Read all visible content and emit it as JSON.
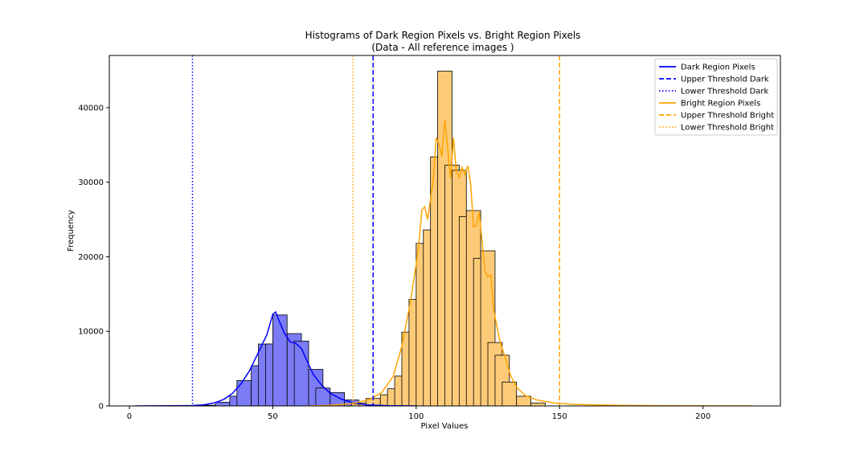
{
  "chart_data": {
    "type": "bar",
    "title": "Histograms of Dark Region Pixels vs. Bright Region Pixels",
    "subtitle": "(Data - All reference images )",
    "xlabel": "Pixel Values",
    "ylabel": "Frequency",
    "xlim": [
      -7,
      227
    ],
    "ylim": [
      0,
      47000
    ],
    "x_ticks": [
      0,
      50,
      100,
      150,
      200
    ],
    "y_ticks": [
      0,
      10000,
      20000,
      30000,
      40000
    ],
    "grid": false,
    "legend_position": "top-right",
    "bin_width": 5,
    "series": [
      {
        "name": "Dark Region Pixels",
        "color": "#0000ff",
        "bar_fill": "#7b7bf5",
        "bins": [
          {
            "x": 25,
            "v": 100
          },
          {
            "x": 30,
            "v": 500
          },
          {
            "x": 35,
            "v": 1300
          },
          {
            "x": 37.5,
            "v": 3400
          },
          {
            "x": 42.5,
            "v": 5400
          },
          {
            "x": 45,
            "v": 8300
          },
          {
            "x": 47.5,
            "v": 8300
          },
          {
            "x": 50,
            "v": 12200
          },
          {
            "x": 55,
            "v": 9700
          },
          {
            "x": 57.5,
            "v": 8700
          },
          {
            "x": 62.5,
            "v": 4900
          },
          {
            "x": 65,
            "v": 2400
          },
          {
            "x": 70,
            "v": 1800
          },
          {
            "x": 75,
            "v": 800
          },
          {
            "x": 80,
            "v": 300
          }
        ],
        "kde": [
          [
            2,
            0
          ],
          [
            15,
            20
          ],
          [
            22,
            60
          ],
          [
            26,
            150
          ],
          [
            30,
            450
          ],
          [
            33,
            900
          ],
          [
            36,
            1700
          ],
          [
            39,
            3000
          ],
          [
            42,
            4800
          ],
          [
            45,
            7200
          ],
          [
            48,
            9600
          ],
          [
            50,
            12300
          ],
          [
            51,
            12600
          ],
          [
            52,
            11600
          ],
          [
            54,
            9800
          ],
          [
            56,
            8600
          ],
          [
            58,
            8400
          ],
          [
            60,
            7700
          ],
          [
            62,
            6000
          ],
          [
            64,
            4300
          ],
          [
            67,
            2800
          ],
          [
            70,
            1700
          ],
          [
            74,
            900
          ],
          [
            78,
            400
          ],
          [
            83,
            130
          ],
          [
            90,
            40
          ],
          [
            100,
            0
          ]
        ]
      },
      {
        "name": "Bright Region Pixels",
        "color": "#ffa500",
        "bar_fill": "#fdcb78",
        "bins": [
          {
            "x": 77.5,
            "v": 300
          },
          {
            "x": 80,
            "v": 400
          },
          {
            "x": 82.5,
            "v": 1000
          },
          {
            "x": 87.5,
            "v": 1500
          },
          {
            "x": 90,
            "v": 2300
          },
          {
            "x": 92.5,
            "v": 4000
          },
          {
            "x": 95,
            "v": 9900
          },
          {
            "x": 97.5,
            "v": 14300
          },
          {
            "x": 100,
            "v": 21800
          },
          {
            "x": 102.5,
            "v": 23600
          },
          {
            "x": 105,
            "v": 33400
          },
          {
            "x": 107.5,
            "v": 44900
          },
          {
            "x": 110,
            "v": 32300
          },
          {
            "x": 112.5,
            "v": 31600
          },
          {
            "x": 115,
            "v": 25400
          },
          {
            "x": 117.5,
            "v": 26200
          },
          {
            "x": 120,
            "v": 19800
          },
          {
            "x": 122.5,
            "v": 20800
          },
          {
            "x": 125,
            "v": 8500
          },
          {
            "x": 127.5,
            "v": 6800
          },
          {
            "x": 130,
            "v": 3200
          },
          {
            "x": 135,
            "v": 1300
          },
          {
            "x": 140,
            "v": 400
          }
        ],
        "kde": [
          [
            62,
            0
          ],
          [
            70,
            80
          ],
          [
            76,
            250
          ],
          [
            80,
            500
          ],
          [
            84,
            900
          ],
          [
            88,
            1800
          ],
          [
            92,
            4000
          ],
          [
            95,
            8000
          ],
          [
            98,
            14000
          ],
          [
            100,
            19000
          ],
          [
            101,
            22000
          ],
          [
            102,
            26300
          ],
          [
            103,
            26700
          ],
          [
            104,
            25000
          ],
          [
            106,
            30500
          ],
          [
            107,
            36000
          ],
          [
            108,
            35000
          ],
          [
            109,
            33500
          ],
          [
            110,
            38400
          ],
          [
            111,
            34500
          ],
          [
            112,
            30500
          ],
          [
            113,
            36000
          ],
          [
            114,
            31500
          ],
          [
            115,
            30600
          ],
          [
            116,
            32000
          ],
          [
            117,
            31000
          ],
          [
            118,
            32200
          ],
          [
            119,
            29800
          ],
          [
            120,
            24000
          ],
          [
            121,
            24200
          ],
          [
            122,
            26000
          ],
          [
            123,
            22000
          ],
          [
            124,
            18000
          ],
          [
            125,
            17300
          ],
          [
            126,
            17600
          ],
          [
            127,
            13000
          ],
          [
            129,
            9000
          ],
          [
            131,
            6500
          ],
          [
            133,
            4000
          ],
          [
            135,
            2500
          ],
          [
            138,
            1400
          ],
          [
            142,
            800
          ],
          [
            148,
            400
          ],
          [
            155,
            200
          ],
          [
            170,
            80
          ],
          [
            190,
            30
          ],
          [
            217,
            10
          ]
        ]
      }
    ],
    "thresholds": [
      {
        "name": "Upper Threshold Dark",
        "x": 85,
        "color": "#0000ff",
        "style": "dashed"
      },
      {
        "name": "Lower Threshold Dark",
        "x": 22,
        "color": "#0000ff",
        "style": "dotted"
      },
      {
        "name": "Upper Threshold Bright",
        "x": 150,
        "color": "#ffa500",
        "style": "dashed"
      },
      {
        "name": "Lower Threshold Bright",
        "x": 78,
        "color": "#ffa500",
        "style": "dotted"
      }
    ],
    "legend": [
      {
        "label": "Dark Region Pixels",
        "color": "#0000ff",
        "style": "solid"
      },
      {
        "label": "Upper Threshold Dark",
        "color": "#0000ff",
        "style": "dashed"
      },
      {
        "label": "Lower Threshold Dark",
        "color": "#0000ff",
        "style": "dotted"
      },
      {
        "label": "Bright Region Pixels",
        "color": "#ffa500",
        "style": "solid"
      },
      {
        "label": "Upper Threshold Bright",
        "color": "#ffa500",
        "style": "dashed"
      },
      {
        "label": "Lower Threshold Bright",
        "color": "#ffa500",
        "style": "dotted"
      }
    ]
  }
}
